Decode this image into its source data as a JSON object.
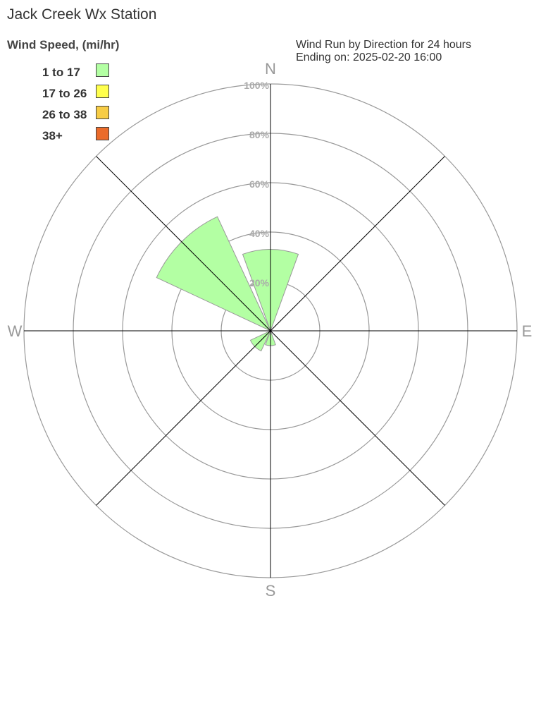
{
  "chart_data": {
    "type": "wind-rose",
    "title": "Jack Creek Wx Station",
    "subtitle": [
      "Wind Run by Direction for 24 hours",
      "Ending on: 2025-02-20 16:00"
    ],
    "legend_title": "Wind Speed, (mi/hr)",
    "legend": [
      {
        "label": "1 to 17",
        "color": "#b3ffa3"
      },
      {
        "label": "17 to 26",
        "color": "#ffff4d"
      },
      {
        "label": "26 to 38",
        "color": "#f7cc45"
      },
      {
        "label": "38+",
        "color": "#eb6b2a"
      }
    ],
    "radial_ticks": [
      "20%",
      "40%",
      "60%",
      "80%",
      "100%"
    ],
    "radial_range": [
      0,
      100
    ],
    "compass_labels": {
      "N": "N",
      "E": "E",
      "S": "S",
      "W": "W"
    },
    "directions": [
      "N",
      "NE",
      "E",
      "SE",
      "S",
      "SW",
      "W",
      "NW"
    ],
    "series": [
      {
        "name": "1 to 17",
        "values": [
          33,
          0,
          0,
          0,
          6,
          9,
          0,
          51
        ]
      }
    ]
  }
}
